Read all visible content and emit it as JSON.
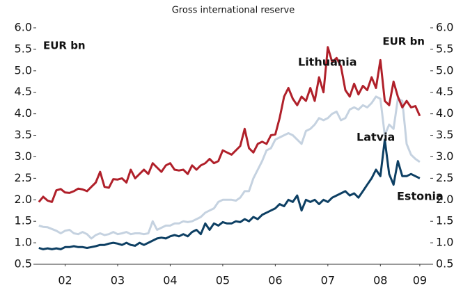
{
  "chart_data": {
    "type": "line",
    "title": "Gross international reserve",
    "y_label": "EUR bn",
    "y2_label": "EUR bn",
    "x": [
      2002,
      2002.083,
      2002.167,
      2002.25,
      2002.333,
      2002.417,
      2002.5,
      2002.583,
      2002.667,
      2002.75,
      2002.833,
      2002.917,
      2003,
      2003.083,
      2003.167,
      2003.25,
      2003.333,
      2003.417,
      2003.5,
      2003.583,
      2003.667,
      2003.75,
      2003.833,
      2003.917,
      2004,
      2004.083,
      2004.167,
      2004.25,
      2004.333,
      2004.417,
      2004.5,
      2004.583,
      2004.667,
      2004.75,
      2004.833,
      2004.917,
      2005,
      2005.083,
      2005.167,
      2005.25,
      2005.333,
      2005.417,
      2005.5,
      2005.583,
      2005.667,
      2005.75,
      2005.833,
      2005.917,
      2006,
      2006.083,
      2006.167,
      2006.25,
      2006.333,
      2006.417,
      2006.5,
      2006.583,
      2006.667,
      2006.75,
      2006.833,
      2006.917,
      2007,
      2007.083,
      2007.167,
      2007.25,
      2007.333,
      2007.417,
      2007.5,
      2007.583,
      2007.667,
      2007.75,
      2007.833,
      2007.917,
      2008,
      2008.083,
      2008.167,
      2008.25,
      2008.333,
      2008.417,
      2008.5,
      2008.583,
      2008.667,
      2008.75,
      2008.833,
      2008.917,
      2009,
      2009.083,
      2009.167,
      2009.25
    ],
    "series": [
      {
        "name": "Lithuania",
        "color": "#b0202a",
        "values": [
          1.95,
          2.07,
          1.98,
          1.95,
          2.22,
          2.25,
          2.17,
          2.16,
          2.2,
          2.26,
          2.24,
          2.2,
          2.3,
          2.4,
          2.65,
          2.3,
          2.28,
          2.48,
          2.47,
          2.5,
          2.4,
          2.7,
          2.5,
          2.6,
          2.7,
          2.6,
          2.85,
          2.75,
          2.65,
          2.8,
          2.85,
          2.7,
          2.68,
          2.7,
          2.6,
          2.8,
          2.7,
          2.8,
          2.85,
          2.95,
          2.85,
          2.9,
          3.15,
          3.1,
          3.05,
          3.15,
          3.25,
          3.65,
          3.2,
          3.1,
          3.3,
          3.35,
          3.3,
          3.5,
          3.52,
          3.9,
          4.4,
          4.6,
          4.35,
          4.2,
          4.4,
          4.3,
          4.6,
          4.3,
          4.85,
          4.5,
          5.55,
          5.2,
          5.3,
          5.1,
          4.55,
          4.4,
          4.7,
          4.45,
          4.65,
          4.55,
          4.85,
          4.6,
          5.25,
          4.3,
          4.2,
          4.75,
          4.4,
          4.15,
          4.3,
          4.15,
          4.18,
          3.95
        ]
      },
      {
        "name": "Latvia",
        "color": "#c5d2e0",
        "values": [
          1.4,
          1.37,
          1.36,
          1.32,
          1.28,
          1.22,
          1.28,
          1.3,
          1.22,
          1.2,
          1.25,
          1.2,
          1.1,
          1.18,
          1.22,
          1.18,
          1.2,
          1.25,
          1.2,
          1.22,
          1.25,
          1.2,
          1.22,
          1.22,
          1.2,
          1.22,
          1.5,
          1.3,
          1.35,
          1.4,
          1.4,
          1.45,
          1.45,
          1.5,
          1.48,
          1.5,
          1.55,
          1.6,
          1.7,
          1.75,
          1.8,
          1.95,
          2.0,
          2.0,
          2.0,
          1.98,
          2.05,
          2.2,
          2.2,
          2.5,
          2.7,
          2.9,
          3.15,
          3.2,
          3.4,
          3.45,
          3.5,
          3.55,
          3.5,
          3.4,
          3.3,
          3.6,
          3.65,
          3.75,
          3.9,
          3.85,
          3.9,
          4.0,
          4.05,
          3.85,
          3.9,
          4.1,
          4.15,
          4.1,
          4.2,
          4.15,
          4.25,
          4.4,
          4.35,
          3.5,
          3.75,
          3.65,
          4.35,
          4.3,
          3.3,
          3.05,
          2.95,
          2.88
        ]
      },
      {
        "name": "Estonia",
        "color": "#0d3f63",
        "values": [
          0.88,
          0.85,
          0.87,
          0.85,
          0.87,
          0.85,
          0.9,
          0.9,
          0.92,
          0.9,
          0.9,
          0.88,
          0.9,
          0.92,
          0.95,
          0.95,
          0.98,
          1.0,
          0.98,
          0.95,
          1.0,
          0.95,
          0.93,
          1.0,
          0.95,
          1.0,
          1.05,
          1.1,
          1.12,
          1.1,
          1.15,
          1.18,
          1.15,
          1.2,
          1.15,
          1.25,
          1.3,
          1.2,
          1.45,
          1.3,
          1.45,
          1.4,
          1.48,
          1.45,
          1.45,
          1.5,
          1.48,
          1.55,
          1.5,
          1.6,
          1.55,
          1.65,
          1.7,
          1.75,
          1.8,
          1.9,
          1.85,
          2.0,
          1.95,
          2.1,
          1.75,
          2.0,
          1.95,
          2.0,
          1.9,
          2.0,
          1.95,
          2.05,
          2.1,
          2.15,
          2.2,
          2.1,
          2.15,
          2.05,
          2.2,
          2.35,
          2.5,
          2.7,
          2.55,
          3.4,
          2.6,
          2.35,
          2.9,
          2.55,
          2.55,
          2.6,
          2.55,
          2.5
        ]
      }
    ],
    "xlim": [
      2001.95,
      2009.45
    ],
    "xticks": [
      {
        "value": 2002.5,
        "label": "02"
      },
      {
        "value": 2003.5,
        "label": "03"
      },
      {
        "value": 2004.5,
        "label": "04"
      },
      {
        "value": 2005.5,
        "label": "05"
      },
      {
        "value": 2006.5,
        "label": "06"
      },
      {
        "value": 2007.5,
        "label": "07"
      },
      {
        "value": 2008.5,
        "label": "08"
      },
      {
        "value": 2009.25,
        "label": "09"
      }
    ],
    "ylim": [
      0.5,
      6
    ],
    "yticks": [
      {
        "value": 0.5,
        "label": "0.5"
      },
      {
        "value": 1,
        "label": "1.0"
      },
      {
        "value": 1.5,
        "label": "1.5"
      },
      {
        "value": 2,
        "label": "2.0"
      },
      {
        "value": 2.5,
        "label": "2.5"
      },
      {
        "value": 3,
        "label": "3.0"
      },
      {
        "value": 3.5,
        "label": "3.5"
      },
      {
        "value": 4,
        "label": "4.0"
      },
      {
        "value": 4.5,
        "label": "4.5"
      },
      {
        "value": 5,
        "label": "5.0"
      },
      {
        "value": 5.5,
        "label": "5.5"
      },
      {
        "value": 6,
        "label": "6.0"
      }
    ],
    "y2lim": [
      0.5,
      6
    ],
    "y2ticks": [
      {
        "value": 0.5,
        "label": "0.5"
      },
      {
        "value": 1,
        "label": "1.0"
      },
      {
        "value": 1.5,
        "label": "1.5"
      },
      {
        "value": 2,
        "label": "2.0"
      },
      {
        "value": 2.5,
        "label": "2.5"
      },
      {
        "value": 3,
        "label": "3.0"
      },
      {
        "value": 3.5,
        "label": "3.5"
      },
      {
        "value": 4,
        "label": "4.0"
      },
      {
        "value": 4.5,
        "label": "4.5"
      },
      {
        "value": 5,
        "label": "5.0"
      },
      {
        "value": 5.5,
        "label": "5.5"
      },
      {
        "value": 6,
        "label": "6.0"
      }
    ],
    "grid": false
  }
}
